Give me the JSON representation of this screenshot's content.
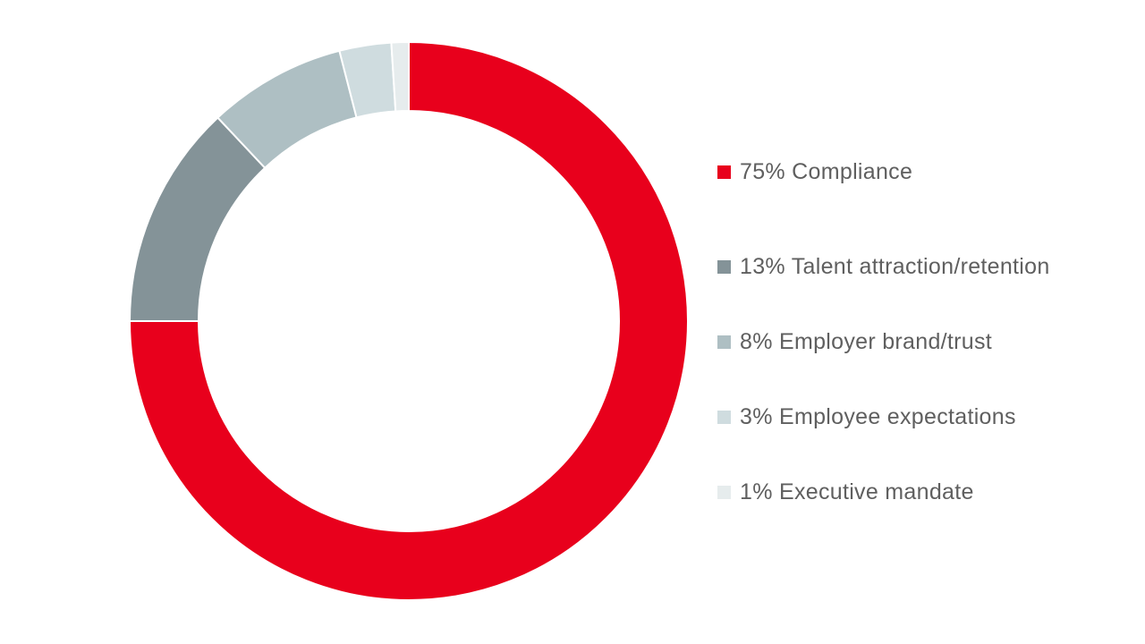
{
  "chart_data": {
    "type": "pie",
    "variant": "donut",
    "legend_position": "right",
    "slices": [
      {
        "label": "75% Compliance",
        "value": 75,
        "color": "#e8001c"
      },
      {
        "label": "13% Talent attraction/retention",
        "value": 13,
        "color": "#849398"
      },
      {
        "label": "8% Employer brand/trust",
        "value": 8,
        "color": "#aebfc3"
      },
      {
        "label": "3% Employee expectations",
        "value": 3,
        "color": "#cfdcdf"
      },
      {
        "label": "1% Executive mandate",
        "value": 1,
        "color": "#e6eced"
      }
    ]
  }
}
